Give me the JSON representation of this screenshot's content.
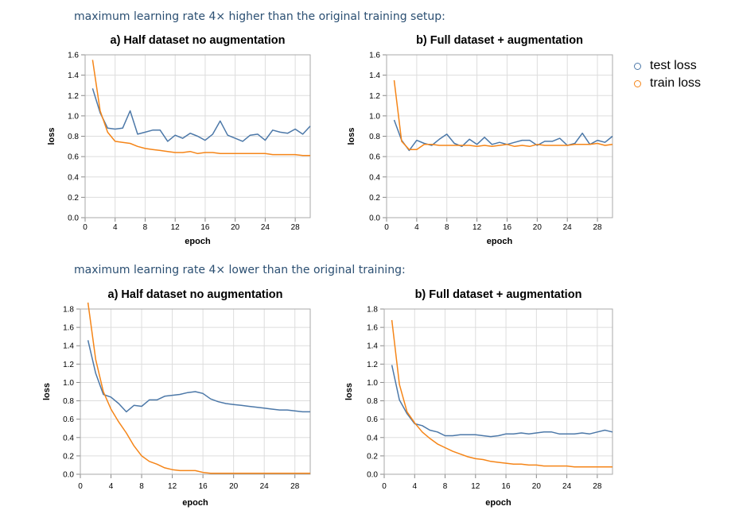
{
  "sections": [
    {
      "title": "maximum learning rate 4× higher than the original training setup:"
    },
    {
      "title": "maximum learning rate 4× lower than the original training:"
    }
  ],
  "legend": [
    {
      "label": "test loss",
      "color": "#4c78a8"
    },
    {
      "label": "train loss",
      "color": "#f58518"
    }
  ],
  "chart_data": [
    {
      "type": "line",
      "title": "a) Half dataset no augmentation",
      "xlabel": "epoch",
      "ylabel": "loss",
      "xlim": [
        0,
        30
      ],
      "ylim": [
        0,
        1.6
      ],
      "xticks": [
        0,
        4,
        8,
        12,
        16,
        20,
        24,
        28
      ],
      "yticks": [
        0.0,
        0.2,
        0.4,
        0.6,
        0.8,
        1.0,
        1.2,
        1.4,
        1.6
      ],
      "grid": true,
      "x": [
        1,
        2,
        3,
        4,
        5,
        6,
        7,
        8,
        9,
        10,
        11,
        12,
        13,
        14,
        15,
        16,
        17,
        18,
        19,
        20,
        21,
        22,
        23,
        24,
        25,
        26,
        27,
        28,
        29,
        30
      ],
      "series": [
        {
          "name": "test loss",
          "color": "#4c78a8",
          "values": [
            1.27,
            1.03,
            0.88,
            0.87,
            0.88,
            1.05,
            0.82,
            0.84,
            0.86,
            0.86,
            0.75,
            0.81,
            0.78,
            0.83,
            0.8,
            0.76,
            0.82,
            0.95,
            0.81,
            0.78,
            0.75,
            0.81,
            0.82,
            0.76,
            0.86,
            0.84,
            0.83,
            0.87,
            0.82,
            0.9
          ]
        },
        {
          "name": "train loss",
          "color": "#f58518",
          "values": [
            1.55,
            1.05,
            0.84,
            0.75,
            0.74,
            0.73,
            0.7,
            0.68,
            0.67,
            0.66,
            0.65,
            0.64,
            0.64,
            0.65,
            0.63,
            0.64,
            0.64,
            0.63,
            0.63,
            0.63,
            0.63,
            0.63,
            0.63,
            0.63,
            0.62,
            0.62,
            0.62,
            0.62,
            0.61,
            0.61
          ]
        }
      ]
    },
    {
      "type": "line",
      "title": "b) Full dataset + augmentation",
      "xlabel": "epoch",
      "ylabel": "loss",
      "xlim": [
        0,
        30
      ],
      "ylim": [
        0,
        1.6
      ],
      "xticks": [
        0,
        4,
        8,
        12,
        16,
        20,
        24,
        28
      ],
      "yticks": [
        0.0,
        0.2,
        0.4,
        0.6,
        0.8,
        1.0,
        1.2,
        1.4,
        1.6
      ],
      "grid": true,
      "x": [
        1,
        2,
        3,
        4,
        5,
        6,
        7,
        8,
        9,
        10,
        11,
        12,
        13,
        14,
        15,
        16,
        17,
        18,
        19,
        20,
        21,
        22,
        23,
        24,
        25,
        26,
        27,
        28,
        29,
        30
      ],
      "series": [
        {
          "name": "test loss",
          "color": "#4c78a8",
          "values": [
            0.96,
            0.76,
            0.66,
            0.76,
            0.73,
            0.71,
            0.77,
            0.82,
            0.73,
            0.7,
            0.77,
            0.72,
            0.79,
            0.72,
            0.74,
            0.72,
            0.74,
            0.76,
            0.76,
            0.71,
            0.75,
            0.75,
            0.78,
            0.71,
            0.73,
            0.83,
            0.72,
            0.76,
            0.74,
            0.8
          ]
        },
        {
          "name": "train loss",
          "color": "#f58518",
          "values": [
            1.35,
            0.75,
            0.67,
            0.67,
            0.72,
            0.72,
            0.71,
            0.71,
            0.71,
            0.71,
            0.71,
            0.7,
            0.71,
            0.7,
            0.71,
            0.72,
            0.7,
            0.71,
            0.7,
            0.72,
            0.71,
            0.71,
            0.71,
            0.71,
            0.72,
            0.72,
            0.72,
            0.73,
            0.71,
            0.72
          ]
        }
      ]
    },
    {
      "type": "line",
      "title": "a) Half dataset no augmentation",
      "xlabel": "epoch",
      "ylabel": "loss",
      "xlim": [
        0,
        30
      ],
      "ylim": [
        0,
        1.8
      ],
      "xticks": [
        0,
        4,
        8,
        12,
        16,
        20,
        24,
        28
      ],
      "yticks": [
        0.0,
        0.2,
        0.4,
        0.6,
        0.8,
        1.0,
        1.2,
        1.4,
        1.6,
        1.8
      ],
      "grid": true,
      "x": [
        1,
        2,
        3,
        4,
        5,
        6,
        7,
        8,
        9,
        10,
        11,
        12,
        13,
        14,
        15,
        16,
        17,
        18,
        19,
        20,
        21,
        22,
        23,
        24,
        25,
        26,
        27,
        28,
        29,
        30
      ],
      "series": [
        {
          "name": "test loss",
          "color": "#4c78a8",
          "values": [
            1.46,
            1.1,
            0.87,
            0.84,
            0.77,
            0.68,
            0.75,
            0.74,
            0.81,
            0.81,
            0.85,
            0.86,
            0.87,
            0.89,
            0.9,
            0.88,
            0.82,
            0.79,
            0.77,
            0.76,
            0.75,
            0.74,
            0.73,
            0.72,
            0.71,
            0.7,
            0.7,
            0.69,
            0.68,
            0.68
          ]
        },
        {
          "name": "train loss",
          "color": "#f58518",
          "values": [
            1.87,
            1.25,
            0.9,
            0.71,
            0.57,
            0.45,
            0.31,
            0.2,
            0.14,
            0.11,
            0.07,
            0.05,
            0.04,
            0.04,
            0.04,
            0.02,
            0.01,
            0.01,
            0.01,
            0.01,
            0.01,
            0.01,
            0.01,
            0.01,
            0.01,
            0.01,
            0.01,
            0.01,
            0.01,
            0.01
          ]
        }
      ]
    },
    {
      "type": "line",
      "title": "b) Full dataset + augmentation",
      "xlabel": "epoch",
      "ylabel": "loss",
      "xlim": [
        0,
        30
      ],
      "ylim": [
        0,
        1.8
      ],
      "xticks": [
        0,
        4,
        8,
        12,
        16,
        20,
        24,
        28
      ],
      "yticks": [
        0.0,
        0.2,
        0.4,
        0.6,
        0.8,
        1.0,
        1.2,
        1.4,
        1.6,
        1.8
      ],
      "grid": true,
      "x": [
        1,
        2,
        3,
        4,
        5,
        6,
        7,
        8,
        9,
        10,
        11,
        12,
        13,
        14,
        15,
        16,
        17,
        18,
        19,
        20,
        21,
        22,
        23,
        24,
        25,
        26,
        27,
        28,
        29,
        30
      ],
      "series": [
        {
          "name": "test loss",
          "color": "#4c78a8",
          "values": [
            1.19,
            0.81,
            0.66,
            0.55,
            0.53,
            0.48,
            0.46,
            0.42,
            0.42,
            0.43,
            0.43,
            0.43,
            0.42,
            0.41,
            0.42,
            0.44,
            0.44,
            0.45,
            0.44,
            0.45,
            0.46,
            0.46,
            0.44,
            0.44,
            0.44,
            0.45,
            0.44,
            0.46,
            0.48,
            0.46
          ]
        },
        {
          "name": "train loss",
          "color": "#f58518",
          "values": [
            1.68,
            0.98,
            0.68,
            0.56,
            0.46,
            0.39,
            0.33,
            0.29,
            0.25,
            0.22,
            0.19,
            0.17,
            0.16,
            0.14,
            0.13,
            0.12,
            0.11,
            0.11,
            0.1,
            0.1,
            0.09,
            0.09,
            0.09,
            0.09,
            0.08,
            0.08,
            0.08,
            0.08,
            0.08,
            0.08
          ]
        }
      ]
    }
  ]
}
